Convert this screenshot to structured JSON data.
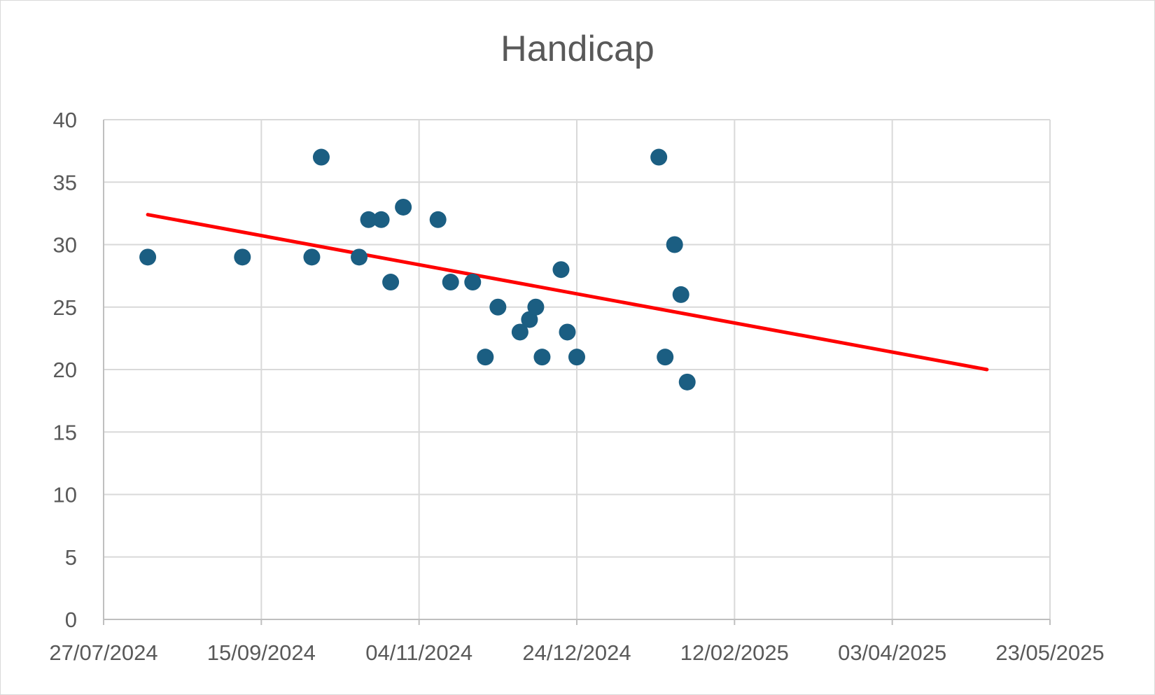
{
  "chart_data": {
    "type": "scatter",
    "title": "Handicap",
    "xlabel": "",
    "ylabel": "",
    "x_axis": {
      "kind": "date",
      "min": "2024-07-27",
      "max": "2025-05-23",
      "ticks": [
        "27/07/2024",
        "15/09/2024",
        "04/11/2024",
        "24/12/2024",
        "12/02/2025",
        "03/04/2025",
        "23/05/2025"
      ]
    },
    "y_axis": {
      "min": 0,
      "max": 40,
      "ticks": [
        "0",
        "5",
        "10",
        "15",
        "20",
        "25",
        "30",
        "35",
        "40"
      ]
    },
    "grid": true,
    "legend": "none",
    "series": [
      {
        "color": "#1b5e82",
        "points": [
          {
            "x": "2024-08-10",
            "y": 29
          },
          {
            "x": "2024-09-09",
            "y": 29
          },
          {
            "x": "2024-10-01",
            "y": 29
          },
          {
            "x": "2024-10-04",
            "y": 37
          },
          {
            "x": "2024-10-16",
            "y": 29
          },
          {
            "x": "2024-10-19",
            "y": 32
          },
          {
            "x": "2024-10-23",
            "y": 32
          },
          {
            "x": "2024-10-26",
            "y": 27
          },
          {
            "x": "2024-10-30",
            "y": 33
          },
          {
            "x": "2024-11-10",
            "y": 32
          },
          {
            "x": "2024-11-14",
            "y": 27
          },
          {
            "x": "2024-11-21",
            "y": 27
          },
          {
            "x": "2024-11-25",
            "y": 21
          },
          {
            "x": "2024-11-29",
            "y": 25
          },
          {
            "x": "2024-12-06",
            "y": 23
          },
          {
            "x": "2024-12-09",
            "y": 24
          },
          {
            "x": "2024-12-11",
            "y": 25
          },
          {
            "x": "2024-12-13",
            "y": 21
          },
          {
            "x": "2024-12-19",
            "y": 28
          },
          {
            "x": "2024-12-21",
            "y": 23
          },
          {
            "x": "2024-12-24",
            "y": 21
          },
          {
            "x": "2025-01-19",
            "y": 37
          },
          {
            "x": "2025-01-21",
            "y": 21
          },
          {
            "x": "2025-01-24",
            "y": 30
          },
          {
            "x": "2025-01-26",
            "y": 26
          },
          {
            "x": "2025-01-28",
            "y": 19
          }
        ]
      }
    ],
    "trendline": {
      "type": "linear",
      "color": "#ff0000",
      "start": {
        "x": "2024-08-10",
        "y": 32.4
      },
      "end": {
        "x": "2025-05-03",
        "y": 20.0
      }
    }
  }
}
